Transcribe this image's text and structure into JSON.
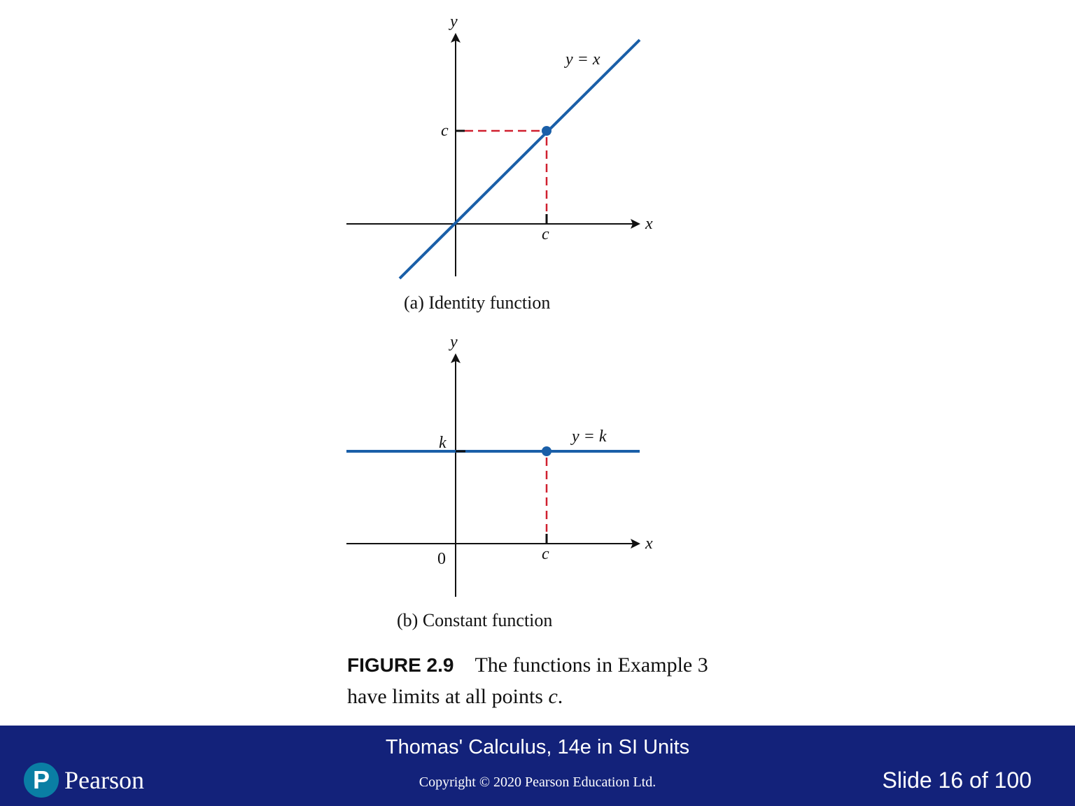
{
  "panel_a": {
    "caption": "(a) Identity function",
    "x_axis_label": "x",
    "y_axis_label": "y",
    "curve_label": "y = x",
    "x_tick_label": "c",
    "y_tick_label": "c"
  },
  "panel_b": {
    "caption": "(b) Constant function",
    "x_axis_label": "x",
    "y_axis_label": "y",
    "curve_label": "y = k",
    "x_tick_label": "c",
    "y_tick_label": "k",
    "origin_label": "0"
  },
  "caption": {
    "figure_number": "FIGURE 2.9",
    "text_line1": "The functions in Example 3",
    "text_line2_prefix": "have limits at all points ",
    "text_line2_var": "c",
    "text_line2_suffix": "."
  },
  "footer": {
    "book_title": "Thomas' Calculus, 14e in SI Units",
    "copyright": "Copyright © 2020 Pearson Education Ltd.",
    "slide_number": "Slide 16 of 100",
    "logo_text": "Pearson",
    "logo_mark": "P",
    "bar_color": "#13227a",
    "logo_color": "#0a7ea4"
  },
  "colors": {
    "curve": "#1a5fa8",
    "guide": "#d0202f"
  }
}
